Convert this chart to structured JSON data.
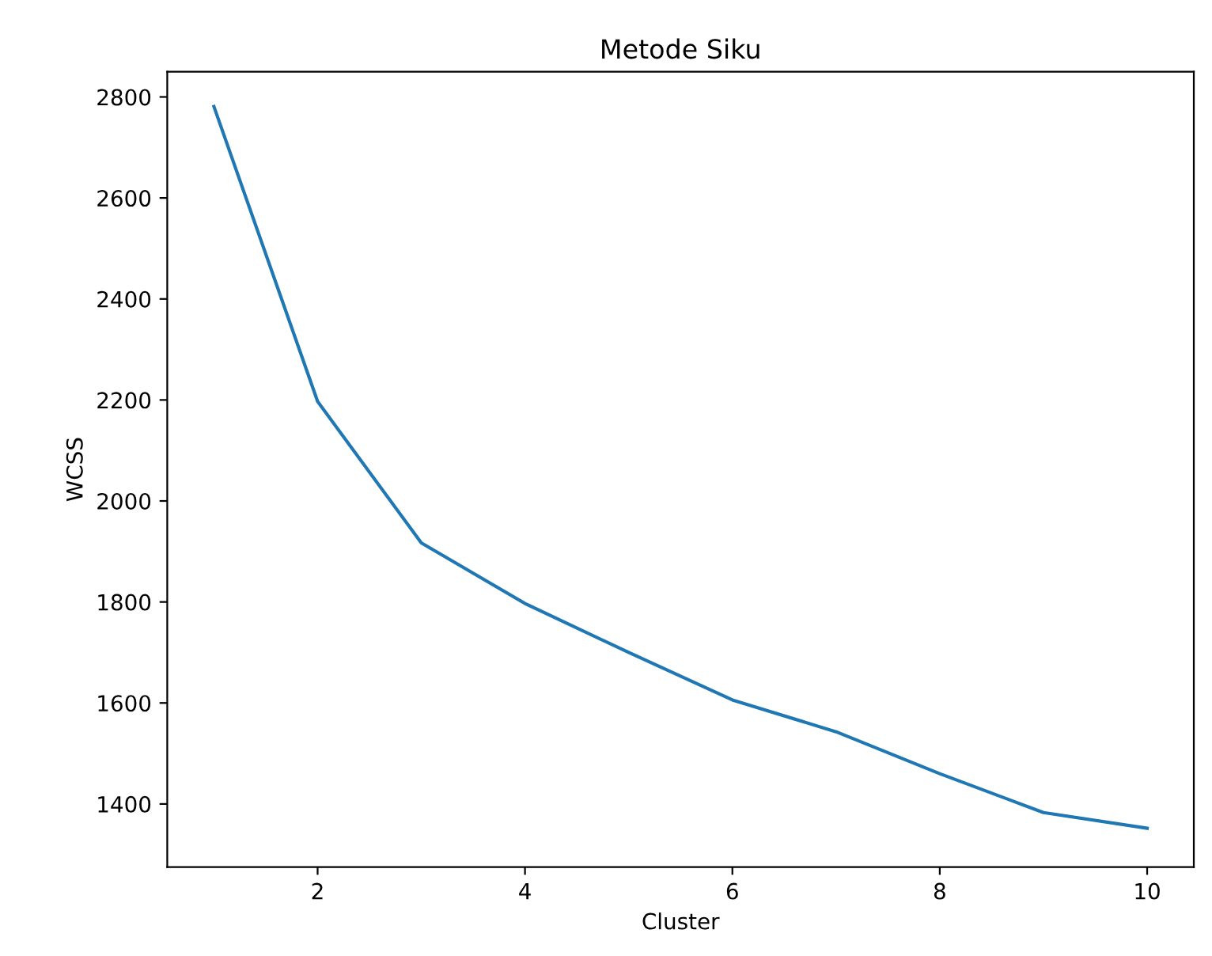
{
  "chart_data": {
    "type": "line",
    "title": "Metode Siku",
    "xlabel": "Cluster",
    "ylabel": "WCSS",
    "x": [
      1,
      2,
      3,
      4,
      5,
      6,
      7,
      8,
      9,
      10
    ],
    "series": [
      {
        "color": "#1f77b4",
        "values": [
          2781,
          2197,
          1917,
          1797,
          1700,
          1606,
          1543,
          1460,
          1383,
          1352
        ]
      }
    ],
    "xlim": [
      0.55,
      10.45
    ],
    "ylim": [
      1275,
      2850
    ],
    "xticks": [
      2,
      4,
      6,
      8,
      10
    ],
    "yticks": [
      1400,
      1600,
      1800,
      2000,
      2200,
      2400,
      2600,
      2800
    ],
    "grid": false,
    "legend": false
  }
}
